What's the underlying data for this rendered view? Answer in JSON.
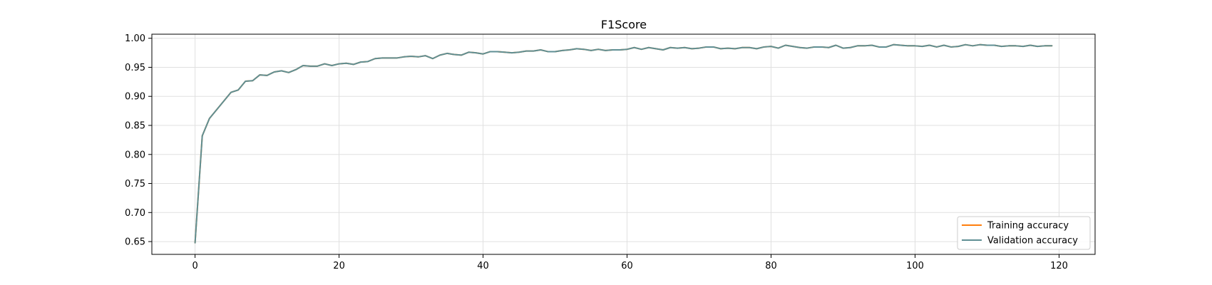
{
  "chart_data": {
    "type": "line",
    "title": "F1Score",
    "xlabel": "",
    "ylabel": "",
    "xlim": [
      -6,
      125
    ],
    "ylim": [
      0.628,
      1.007
    ],
    "xticks": [
      0,
      20,
      40,
      60,
      80,
      100,
      120
    ],
    "xtick_labels": [
      "0",
      "20",
      "40",
      "60",
      "80",
      "100",
      "120"
    ],
    "yticks": [
      0.65,
      0.7,
      0.75,
      0.8,
      0.85,
      0.9,
      0.95,
      1.0
    ],
    "ytick_labels": [
      "0.65",
      "0.70",
      "0.75",
      "0.80",
      "0.85",
      "0.90",
      "0.95",
      "1.00"
    ],
    "grid": true,
    "legend_position": "bottom-right",
    "series": [
      {
        "name": "Training accuracy",
        "color": "#ff7f0e",
        "values": [
          0.648,
          0.832,
          0.862,
          0.877,
          0.892,
          0.907,
          0.911,
          0.926,
          0.927,
          0.937,
          0.936,
          0.942,
          0.944,
          0.941,
          0.946,
          0.953,
          0.952,
          0.952,
          0.956,
          0.953,
          0.956,
          0.957,
          0.955,
          0.959,
          0.96,
          0.965,
          0.966,
          0.966,
          0.966,
          0.968,
          0.969,
          0.968,
          0.97,
          0.965,
          0.971,
          0.974,
          0.972,
          0.971,
          0.976,
          0.975,
          0.973,
          0.977,
          0.977,
          0.976,
          0.975,
          0.976,
          0.978,
          0.978,
          0.98,
          0.977,
          0.977,
          0.979,
          0.98,
          0.982,
          0.981,
          0.979,
          0.981,
          0.979,
          0.98,
          0.98,
          0.981,
          0.984,
          0.981,
          0.984,
          0.982,
          0.98,
          0.984,
          0.983,
          0.984,
          0.982,
          0.983,
          0.985,
          0.985,
          0.982,
          0.983,
          0.982,
          0.984,
          0.984,
          0.982,
          0.985,
          0.986,
          0.983,
          0.988,
          0.986,
          0.984,
          0.983,
          0.985,
          0.985,
          0.984,
          0.988,
          0.983,
          0.984,
          0.987,
          0.987,
          0.988,
          0.985,
          0.985,
          0.989,
          0.988,
          0.987,
          0.987,
          0.986,
          0.988,
          0.985,
          0.988,
          0.985,
          0.986,
          0.989,
          0.987,
          0.989,
          0.988,
          0.988,
          0.986,
          0.987,
          0.987,
          0.986,
          0.988,
          0.986,
          0.987,
          0.987
        ]
      },
      {
        "name": "Validation accuracy",
        "color": "#5f8f94",
        "values": [
          0.648,
          0.832,
          0.862,
          0.877,
          0.892,
          0.907,
          0.911,
          0.926,
          0.927,
          0.937,
          0.936,
          0.942,
          0.944,
          0.941,
          0.946,
          0.953,
          0.952,
          0.952,
          0.956,
          0.953,
          0.956,
          0.957,
          0.955,
          0.959,
          0.96,
          0.965,
          0.966,
          0.966,
          0.966,
          0.968,
          0.969,
          0.968,
          0.97,
          0.965,
          0.971,
          0.974,
          0.972,
          0.971,
          0.976,
          0.975,
          0.973,
          0.977,
          0.977,
          0.976,
          0.975,
          0.976,
          0.978,
          0.978,
          0.98,
          0.977,
          0.977,
          0.979,
          0.98,
          0.982,
          0.981,
          0.979,
          0.981,
          0.979,
          0.98,
          0.98,
          0.981,
          0.984,
          0.981,
          0.984,
          0.982,
          0.98,
          0.984,
          0.983,
          0.984,
          0.982,
          0.983,
          0.985,
          0.985,
          0.982,
          0.983,
          0.982,
          0.984,
          0.984,
          0.982,
          0.985,
          0.986,
          0.983,
          0.988,
          0.986,
          0.984,
          0.983,
          0.985,
          0.985,
          0.984,
          0.988,
          0.983,
          0.984,
          0.987,
          0.987,
          0.988,
          0.985,
          0.985,
          0.989,
          0.988,
          0.987,
          0.987,
          0.986,
          0.988,
          0.985,
          0.988,
          0.985,
          0.986,
          0.989,
          0.987,
          0.989,
          0.988,
          0.988,
          0.986,
          0.987,
          0.987,
          0.986,
          0.988,
          0.986,
          0.987,
          0.987
        ]
      }
    ]
  }
}
